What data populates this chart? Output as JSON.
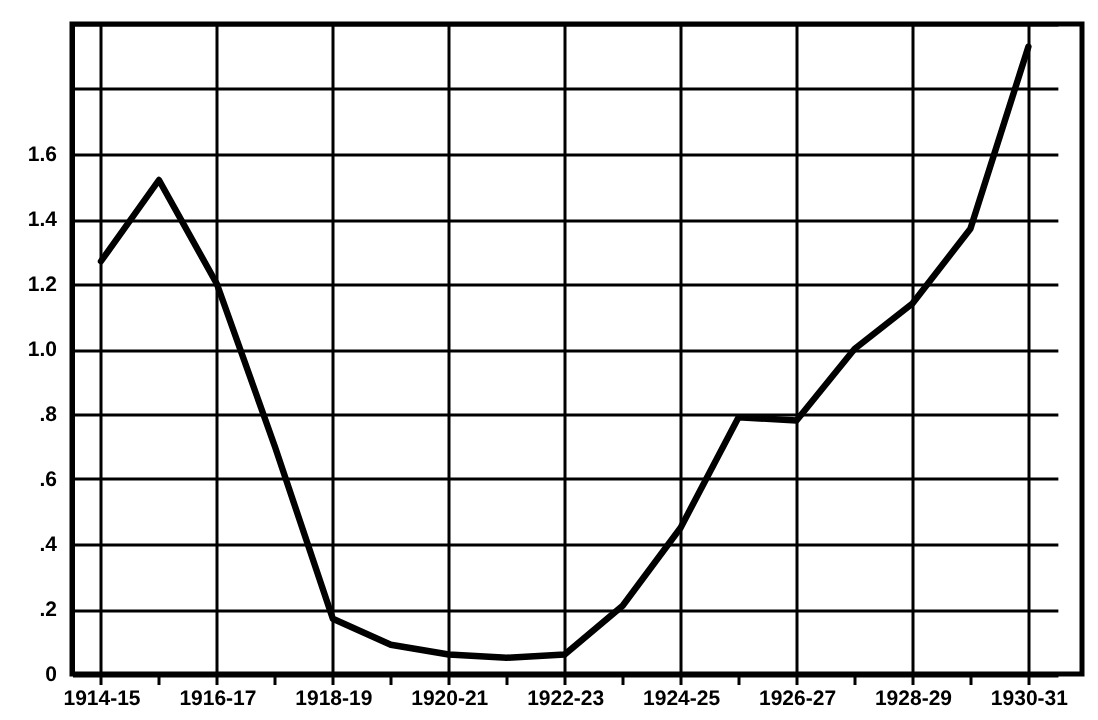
{
  "chart_data": {
    "type": "line",
    "categories": [
      "1914-15",
      null,
      "1916-17",
      null,
      "1918-19",
      null,
      "1920-21",
      null,
      "1922-23",
      null,
      "1924-25",
      null,
      "1926-27",
      null,
      "1928-29",
      null,
      "1930-31"
    ],
    "series": [
      {
        "color": "#000000",
        "values": [
          1.27,
          1.52,
          1.2,
          0.7,
          0.17,
          0.09,
          0.06,
          0.05,
          0.06,
          0.21,
          0.45,
          0.79,
          0.78,
          1.0,
          1.14,
          1.37,
          1.93
        ]
      }
    ],
    "ylim": [
      0,
      2.0
    ],
    "yticks": [
      0,
      {
        "value": 0.2,
        "label": ".2"
      },
      {
        "value": 0.4,
        "label": ".4"
      },
      {
        "value": 0.6,
        "label": ".6"
      },
      {
        "value": 0.8,
        "label": ".8"
      },
      {
        "value": 1.0,
        "label": "1.0"
      },
      {
        "value": 1.2,
        "label": "1.2"
      },
      {
        "value": 1.4,
        "label": "1.4"
      },
      {
        "value": 1.6,
        "label": "1.6"
      },
      {
        "value": 1.8,
        "label": null
      },
      {
        "value": 2.0,
        "label": null
      }
    ],
    "grid": true,
    "marker": "none",
    "line_style": "solid"
  }
}
